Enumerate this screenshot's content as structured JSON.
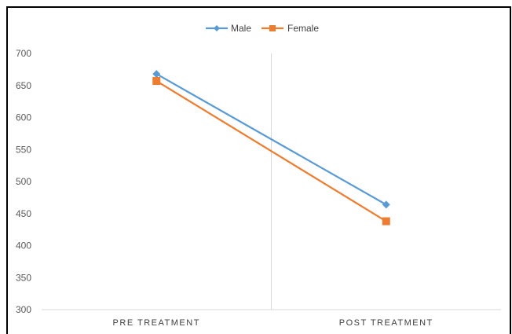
{
  "chart_data": {
    "type": "line",
    "categories": [
      "PRE TREATMENT",
      "POST TREATMENT"
    ],
    "series": [
      {
        "name": "Male",
        "values": [
          668,
          464
        ],
        "color": "#5B9BD5",
        "marker": "diamond"
      },
      {
        "name": "Female",
        "values": [
          657,
          438
        ],
        "color": "#ED7D31",
        "marker": "square"
      }
    ],
    "ylim": [
      300,
      700
    ],
    "yticks": [
      300,
      350,
      400,
      450,
      500,
      550,
      600,
      650,
      700
    ],
    "grid": "vertical",
    "legend": "top-center",
    "title": "",
    "xlabel": "",
    "ylabel": ""
  }
}
